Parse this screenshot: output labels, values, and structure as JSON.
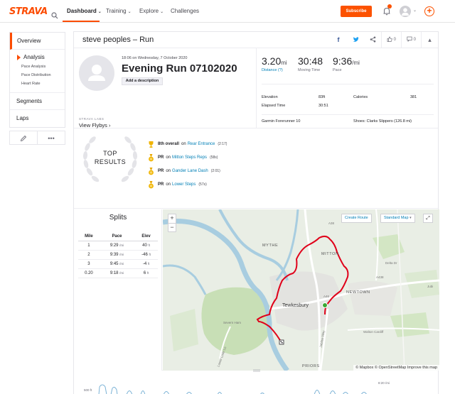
{
  "nav": {
    "logo": "STRAVA",
    "items": [
      {
        "label": "Dashboard",
        "caret": "⌄"
      },
      {
        "label": "Training",
        "caret": "⌄"
      },
      {
        "label": "Explore",
        "caret": "⌄"
      },
      {
        "label": "Challenges"
      }
    ],
    "subscribe_label": "Subscribe",
    "plus": "+"
  },
  "sidebar": {
    "overview": "Overview",
    "analysis": "Analysis",
    "sub_items": [
      "Pace Analysis",
      "Pace Distribution",
      "Heart Rate"
    ],
    "segments": "Segments",
    "laps": "Laps",
    "more": "•••"
  },
  "header": {
    "title": "steve peoples – Run",
    "facebook": "f",
    "kudos_count": "0",
    "comments_count": "0"
  },
  "activity": {
    "date_line": "18:06 on Wednesday, 7 October 2020",
    "title": "Evening Run 07102020",
    "description_button": "Add a description",
    "labs_tag": "STRAVA LABS",
    "flybys": "View Flybys ›"
  },
  "stats": {
    "distance": {
      "value": "3.20",
      "unit": "mi",
      "label": "Distance (?)"
    },
    "moving_time": {
      "value": "30:48",
      "label": "Moving Time"
    },
    "pace": {
      "value": "9:36",
      "unit": "/mi",
      "label": "Pace"
    },
    "elevation_label": "Elevation",
    "elevation_value": "83ft",
    "calories_label": "Calories",
    "calories_value": "381",
    "elapsed_label": "Elapsed Time",
    "elapsed_value": "30:51",
    "device": "Garmin Forerunner 10",
    "shoes": "Shoes: Clarks Slippers (126.8 mi)"
  },
  "results": {
    "title_line1": "TOP",
    "title_line2": "RESULTS",
    "rows": [
      {
        "prefix": "8th overall",
        "on": "on",
        "segment": "Rear Entrance",
        "time": "(2:17)",
        "medal": "gold"
      },
      {
        "prefix": "PR",
        "on": "on",
        "segment": "Mitton Steps Reps",
        "time": "(58s)",
        "medal": "pr"
      },
      {
        "prefix": "PR",
        "on": "on",
        "segment": "Gander Lane Dash",
        "time": "(2:01)",
        "medal": "pr"
      },
      {
        "prefix": "PR",
        "on": "on",
        "segment": "Lower Steps",
        "time": "(57s)",
        "medal": "pr"
      }
    ]
  },
  "splits": {
    "title": "Splits",
    "headers": [
      "Mile",
      "Pace",
      "Elev"
    ],
    "rows": [
      {
        "mile": "1",
        "pace": "9:29",
        "pace_unit": "/mi",
        "elev": "40",
        "elev_unit": "ft"
      },
      {
        "mile": "2",
        "pace": "9:39",
        "pace_unit": "/mi",
        "elev": "-46",
        "elev_unit": "ft"
      },
      {
        "mile": "3",
        "pace": "9:45",
        "pace_unit": "/mi",
        "elev": "-4",
        "elev_unit": "ft"
      },
      {
        "mile": "0.20",
        "pace": "9:18",
        "pace_unit": "/mi",
        "elev": "6",
        "elev_unit": "ft"
      }
    ]
  },
  "map": {
    "zoom_in": "+",
    "zoom_out": "−",
    "create_route": "Create Route",
    "standard_map": "Standard Map",
    "attribution": "© Mapbox © OpenStreetMap  Improve this map",
    "labels": {
      "mythe": "MYTHE",
      "mitton": "MITTON",
      "newtown": "NEWTOWN",
      "tewkesbury": "Tewkesbury",
      "severn_ham": "Severn Ham",
      "walton_cardiff": "Walton Cardiff",
      "priors": "PRIORS",
      "delta_dr": "Delta Dr",
      "jubilee_way": "Jubilee Way",
      "lower_lode_ln": "Lower Lode Ln",
      "a38": "A38",
      "a438": "A438",
      "a46": "A46",
      "jubi": "Jubi"
    }
  },
  "elevation_chart": {
    "y_label_left": "500 ft",
    "y_label_right": "8:20 /mi"
  },
  "colors": {
    "brand": "#fc4c02",
    "link": "#007fb6",
    "route": "#e0001a",
    "river": "#a8cde0",
    "park": "#c8dfb6"
  }
}
